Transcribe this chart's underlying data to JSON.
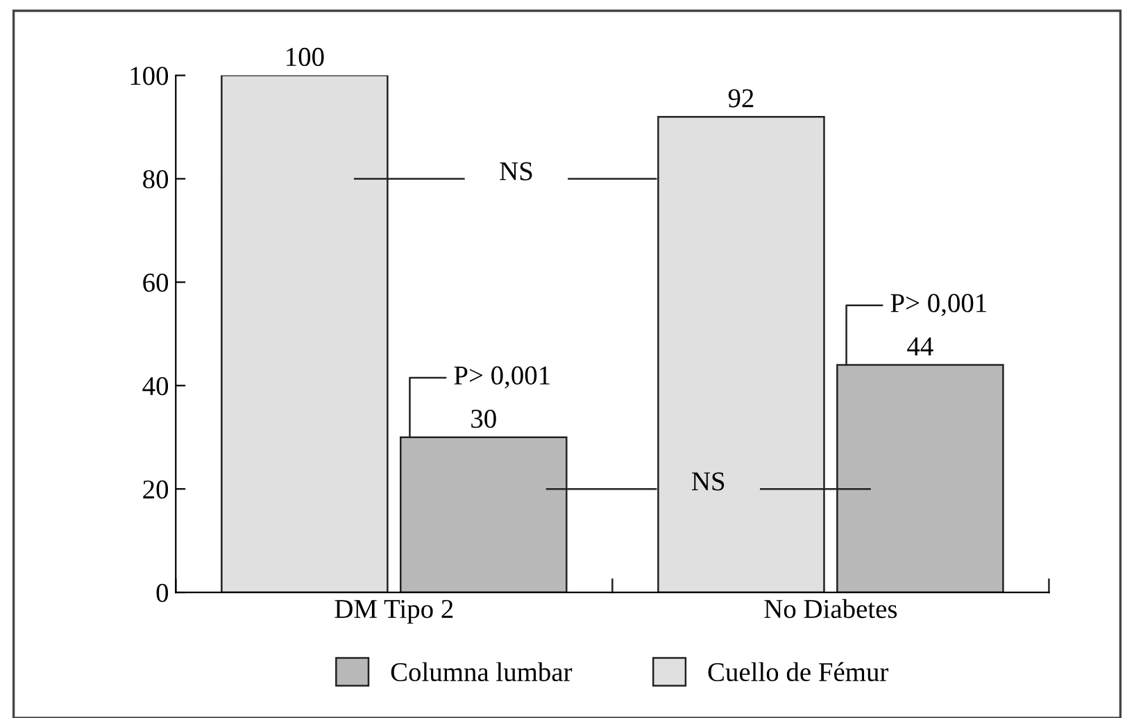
{
  "chart_data": {
    "type": "bar",
    "categories": [
      "DM Tipo 2",
      "No Diabetes"
    ],
    "series": [
      {
        "name": "Cuello de Fémur",
        "color": "#e0e0e0",
        "values": [
          100,
          92
        ]
      },
      {
        "name": "Columna lumbar",
        "color": "#b8b8b8",
        "values": [
          30,
          44
        ]
      }
    ],
    "ylim": [
      0,
      100
    ],
    "yticks": [
      0,
      20,
      40,
      60,
      80,
      100
    ],
    "data_labels": true,
    "grid": false,
    "legend": "bottom",
    "annotations": [
      "NS",
      "NS",
      {
        "text": "P> 0,001",
        "x": "DM Tipo 2",
        "y": 30
      },
      {
        "text": "P> 0,001",
        "x": "No Diabetes",
        "y": 44
      }
    ]
  }
}
